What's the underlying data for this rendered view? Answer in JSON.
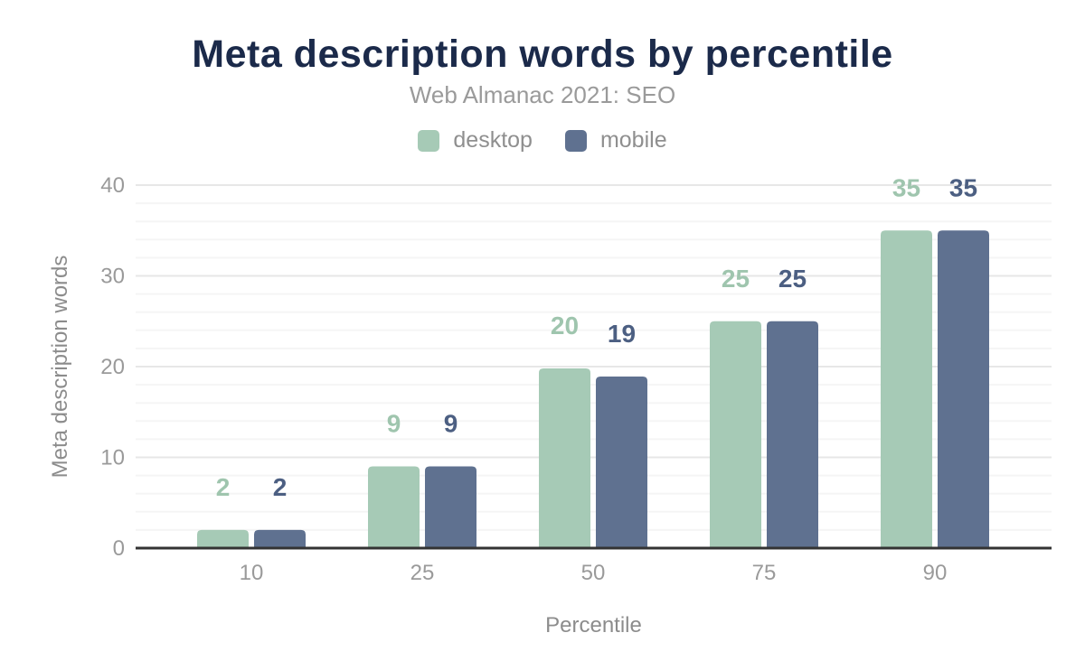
{
  "chart_data": {
    "type": "bar",
    "title": "Meta description words by percentile",
    "subtitle": "Web Almanac 2021: SEO",
    "xlabel": "Percentile",
    "ylabel": "Meta description words",
    "categories": [
      "10",
      "25",
      "50",
      "75",
      "90"
    ],
    "series": [
      {
        "name": "desktop",
        "color": "#a6cab6",
        "label_color": "#9fc5ae",
        "values": [
          2,
          9,
          19.8,
          25,
          35
        ],
        "labels": [
          "2",
          "9",
          "20",
          "25",
          "35"
        ]
      },
      {
        "name": "mobile",
        "color": "#5f7190",
        "label_color": "#4c5f82",
        "values": [
          2,
          9,
          18.9,
          25,
          35
        ],
        "labels": [
          "2",
          "9",
          "19",
          "25",
          "35"
        ]
      }
    ],
    "ylim": [
      0,
      40
    ],
    "yticks": [
      0,
      10,
      20,
      30,
      40
    ],
    "minor_tick_step": 2,
    "grid": "on",
    "legend_position": "top"
  },
  "colors": {
    "title": "#1b2a4a",
    "subtitle": "#9a9a9a",
    "axis_text": "#9a9a9a",
    "axis_title": "#8c8c8c",
    "axis_line": "#333333",
    "grid_major": "#e7e7e7",
    "grid_minor": "#f5f5f5",
    "background": "#ffffff"
  }
}
